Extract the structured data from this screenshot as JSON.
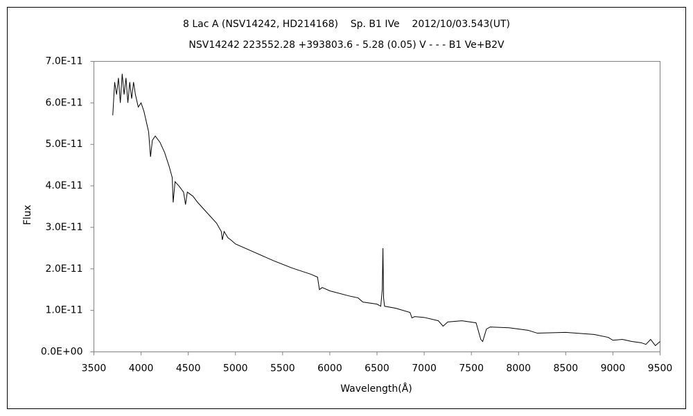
{
  "chart_data": {
    "type": "line",
    "title": "8 Lac A (NSV14242, HD214168)    Sp. B1 IVe    2012/10/03.543(UT)",
    "subtitle": "NSV14242 223552.28 +393803.6 - 5.28 (0.05) V - - - B1 Ve+B2V",
    "xlabel": "Wavelength(Å)",
    "ylabel": "Flux",
    "color": "#000000",
    "x": [
      3700,
      3720,
      3740,
      3760,
      3780,
      3800,
      3820,
      3840,
      3860,
      3880,
      3900,
      3920,
      3940,
      3970,
      4000,
      4030,
      4060,
      4080,
      4100,
      4120,
      4150,
      4200,
      4250,
      4300,
      4330,
      4340,
      4360,
      4400,
      4450,
      4471,
      4490,
      4550,
      4600,
      4700,
      4800,
      4850,
      4861,
      4880,
      4920,
      4950,
      5000,
      5200,
      5400,
      5600,
      5800,
      5870,
      5890,
      5920,
      6000,
      6200,
      6300,
      6350,
      6500,
      6540,
      6556,
      6563,
      6570,
      6580,
      6700,
      6850,
      6870,
      6900,
      7000,
      7150,
      7200,
      7250,
      7400,
      7550,
      7600,
      7620,
      7660,
      7700,
      7900,
      8100,
      8200,
      8500,
      8800,
      8950,
      9000,
      9100,
      9200,
      9300,
      9350,
      9400,
      9450,
      9500
    ],
    "values": [
      5.7e-11,
      6.5e-11,
      6.2e-11,
      6.6e-11,
      6e-11,
      6.7e-11,
      6.2e-11,
      6.6e-11,
      6e-11,
      6.5e-11,
      6.1e-11,
      6.5e-11,
      6.2e-11,
      5.9e-11,
      6e-11,
      5.8e-11,
      5.5e-11,
      5.3e-11,
      4.7e-11,
      5.1e-11,
      5.2e-11,
      5.05e-11,
      4.8e-11,
      4.45e-11,
      4.2e-11,
      3.6e-11,
      4.1e-11,
      4e-11,
      3.85e-11,
      3.55e-11,
      3.85e-11,
      3.75e-11,
      3.6e-11,
      3.35e-11,
      3.1e-11,
      2.9e-11,
      2.7e-11,
      2.9e-11,
      2.75e-11,
      2.7e-11,
      2.6e-11,
      2.4e-11,
      2.2e-11,
      2.02e-11,
      1.87e-11,
      1.8e-11,
      1.5e-11,
      1.55e-11,
      1.47e-11,
      1.35e-11,
      1.3e-11,
      1.2e-11,
      1.15e-11,
      1.1e-11,
      1.5e-11,
      2.5e-11,
      1.3e-11,
      1.1e-11,
      1.05e-11,
      9.5e-12,
      8.2e-12,
      8.5e-12,
      8.3e-12,
      7.5e-12,
      6.2e-12,
      7.2e-12,
      7.5e-12,
      7e-12,
      3e-12,
      2.5e-12,
      5.5e-12,
      6e-12,
      5.8e-12,
      5.2e-12,
      4.5e-12,
      4.7e-12,
      4.2e-12,
      3.5e-12,
      2.8e-12,
      3e-12,
      2.5e-12,
      2.2e-12,
      1.8e-12,
      3e-12,
      1.5e-12,
      2.5e-12
    ],
    "xlim": [
      3500,
      9500
    ],
    "xticks": [
      3500,
      4000,
      4500,
      5000,
      5500,
      6000,
      6500,
      7000,
      7500,
      8000,
      8500,
      9000,
      9500
    ],
    "ylim": [
      0,
      7e-11
    ],
    "yticks": [
      {
        "value": 0,
        "label": "0.0E+00"
      },
      {
        "value": 1e-11,
        "label": "1.0E-11"
      },
      {
        "value": 2e-11,
        "label": "2.0E-11"
      },
      {
        "value": 3e-11,
        "label": "3.0E-11"
      },
      {
        "value": 4e-11,
        "label": "4.0E-11"
      },
      {
        "value": 5e-11,
        "label": "5.0E-11"
      },
      {
        "value": 6e-11,
        "label": "6.0E-11"
      },
      {
        "value": 7e-11,
        "label": "7.0E-11"
      }
    ],
    "grid": false
  }
}
